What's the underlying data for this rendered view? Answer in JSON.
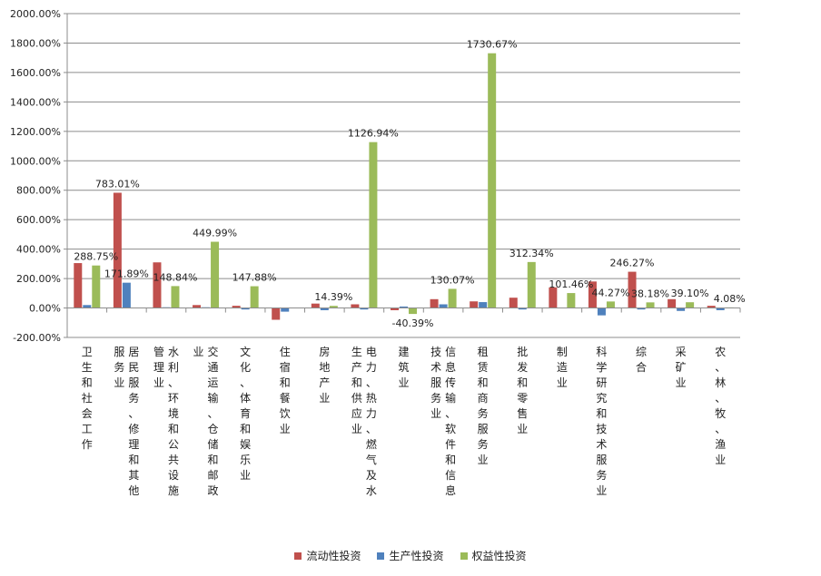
{
  "chart_data": {
    "type": "bar",
    "title": "",
    "xlabel": "",
    "ylabel": "",
    "ylim": [
      -200,
      2000
    ],
    "yticks": [
      "2000.00%",
      "1800.00%",
      "1600.00%",
      "1400.00%",
      "1200.00%",
      "1000.00%",
      "800.00%",
      "600.00%",
      "400.00%",
      "200.00%",
      "0.00%",
      "-200.00%"
    ],
    "ytick_values": [
      2000,
      1800,
      1600,
      1400,
      1200,
      1000,
      800,
      600,
      400,
      200,
      0,
      -200
    ],
    "categories": [
      "卫生和社会工作",
      "居民服务、修理和其他服务业",
      "水利、环境和公共设施管理业",
      "交通运输、仓储和邮政业",
      "文化、体育和娱乐业",
      "住宿和餐饮业",
      "房地产业",
      "电力、热力、燃气及水生产和供应业",
      "建筑业",
      "信息传输、软件和信息技术服务业",
      "租赁和商务服务业",
      "批发和零售业",
      "制造业",
      "科学研究和技术服务业",
      "综合",
      "采矿业",
      "农、林、牧、渔业"
    ],
    "series": [
      {
        "name": "流动性投资",
        "color": "#c0504d",
        "values": [
          305,
          783.01,
          310,
          20,
          15,
          -80,
          30,
          25,
          -15,
          60,
          45,
          70,
          140,
          180,
          246.27,
          60,
          15
        ]
      },
      {
        "name": "生产性投资",
        "color": "#4f81bd",
        "values": [
          20,
          171.89,
          5,
          5,
          -10,
          -25,
          -15,
          -10,
          10,
          25,
          40,
          -10,
          0,
          -50,
          -10,
          -20,
          -15
        ]
      },
      {
        "name": "权益性投资",
        "color": "#9bbb59",
        "values": [
          288.75,
          0,
          148.84,
          449.99,
          147.88,
          0,
          14.39,
          1126.94,
          -40.39,
          130.07,
          1730.67,
          312.34,
          101.46,
          44.27,
          38.18,
          39.1,
          4.08
        ]
      }
    ],
    "data_labels": [
      {
        "category": 0,
        "series": 2,
        "text": "288.75%"
      },
      {
        "category": 1,
        "series": 0,
        "text": "783.01%"
      },
      {
        "category": 1,
        "series": 1,
        "text": "171.89%"
      },
      {
        "category": 2,
        "series": 2,
        "text": "148.84%"
      },
      {
        "category": 3,
        "series": 2,
        "text": "449.99%"
      },
      {
        "category": 4,
        "series": 2,
        "text": "147.88%"
      },
      {
        "category": 6,
        "series": 2,
        "text": "14.39%"
      },
      {
        "category": 7,
        "series": 2,
        "text": "1126.94%"
      },
      {
        "category": 8,
        "series": 2,
        "text": "-40.39%"
      },
      {
        "category": 9,
        "series": 2,
        "text": "130.07%"
      },
      {
        "category": 10,
        "series": 2,
        "text": "1730.67%"
      },
      {
        "category": 11,
        "series": 2,
        "text": "312.34%"
      },
      {
        "category": 12,
        "series": 2,
        "text": "101.46%"
      },
      {
        "category": 13,
        "series": 2,
        "text": "44.27%"
      },
      {
        "category": 14,
        "series": 0,
        "text": "246.27%"
      },
      {
        "category": 14,
        "series": 2,
        "text": "38.18%"
      },
      {
        "category": 15,
        "series": 2,
        "text": "39.10%"
      },
      {
        "category": 16,
        "series": 2,
        "text": "4.08%"
      }
    ],
    "grid": true,
    "legend_position": "bottom"
  }
}
